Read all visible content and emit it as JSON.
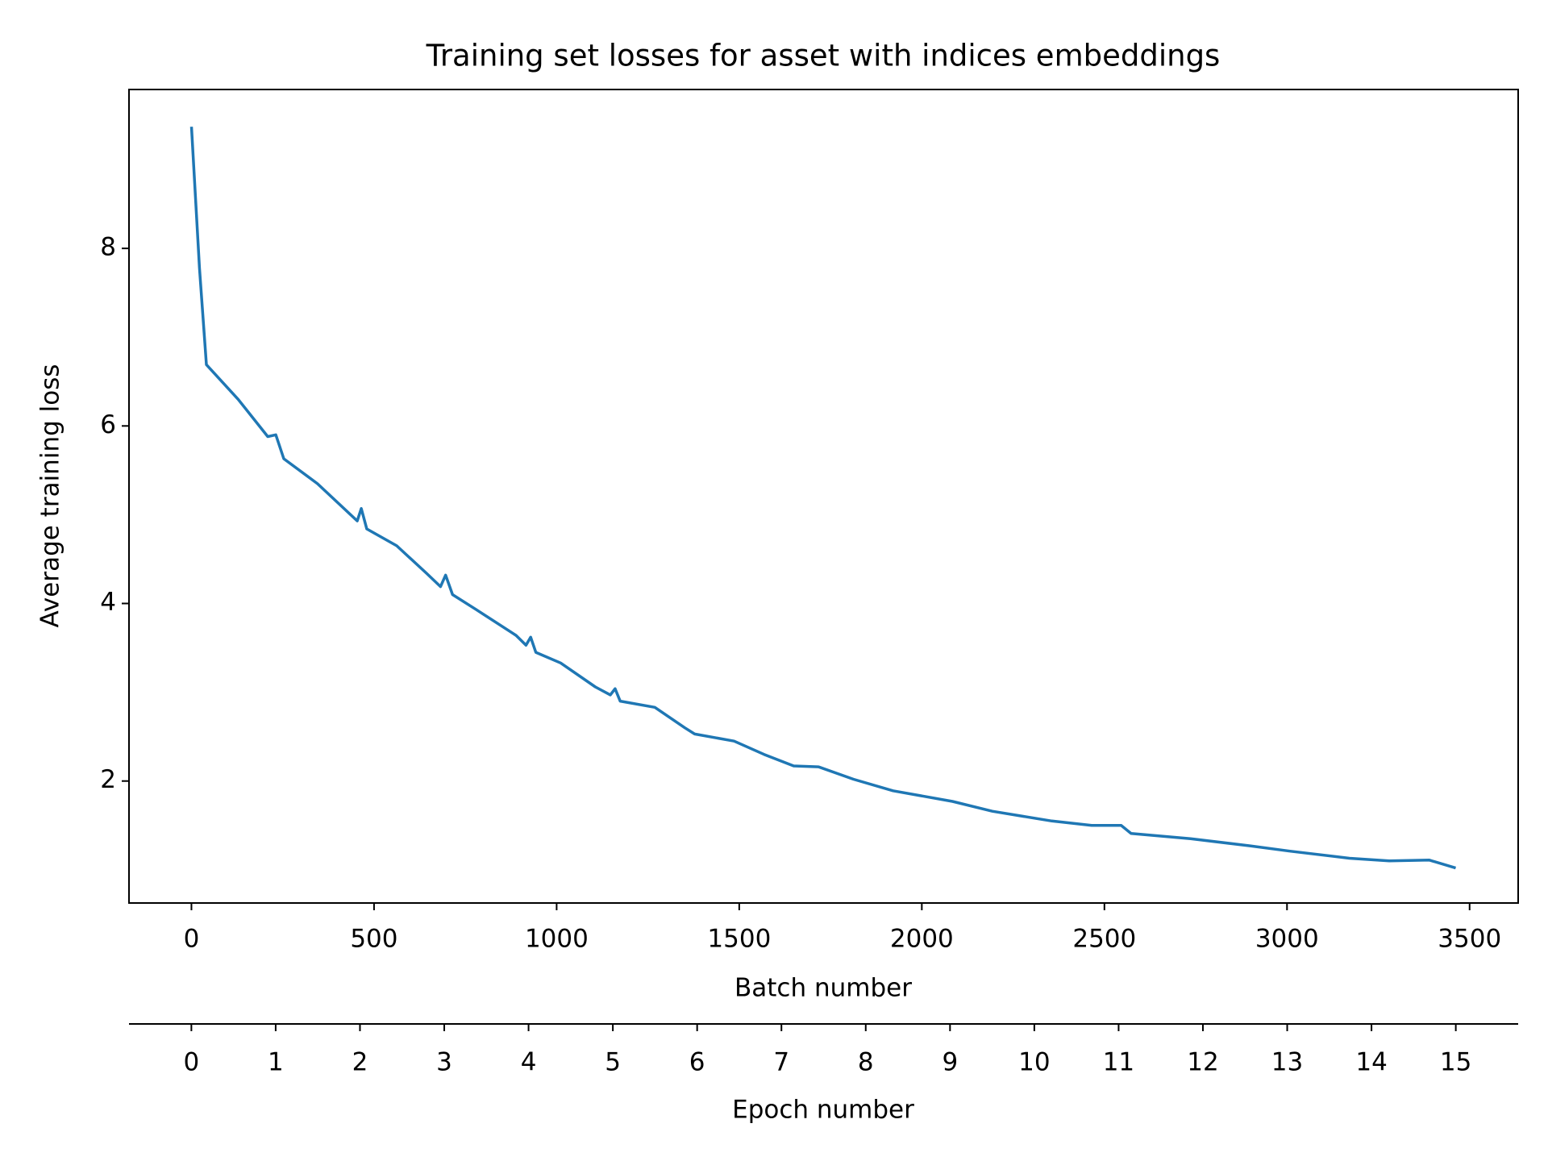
{
  "chart_data": {
    "type": "line",
    "title": "Training set losses for asset with indices embeddings",
    "xlabel": "Batch number",
    "ylabel": "Average training loss",
    "x": [
      0,
      22,
      41,
      128,
      209,
      231,
      253,
      345,
      454,
      465,
      480,
      562,
      644,
      682,
      696,
      715,
      780,
      889,
      916,
      929,
      943,
      1011,
      1106,
      1147,
      1160,
      1174,
      1269,
      1351,
      1378,
      1486,
      1568,
      1649,
      1717,
      1813,
      1921,
      2084,
      2193,
      2356,
      2465,
      2546,
      2573,
      2736,
      2899,
      3008,
      3171,
      3280,
      3389,
      3462
    ],
    "series": [
      {
        "name": "Average training loss",
        "color": "#1f77b4",
        "values": [
          9.37,
          7.78,
          6.69,
          6.3,
          5.88,
          5.9,
          5.63,
          5.35,
          4.93,
          5.07,
          4.84,
          4.65,
          4.34,
          4.19,
          4.32,
          4.1,
          3.93,
          3.64,
          3.53,
          3.62,
          3.45,
          3.33,
          3.06,
          2.97,
          3.04,
          2.9,
          2.83,
          2.6,
          2.53,
          2.45,
          2.3,
          2.17,
          2.16,
          2.02,
          1.89,
          1.77,
          1.66,
          1.55,
          1.5,
          1.5,
          1.41,
          1.35,
          1.27,
          1.21,
          1.13,
          1.1,
          1.11,
          1.02
        ]
      }
    ],
    "xlim": [
      -171,
      3633
    ],
    "xticks": [
      0,
      500,
      1000,
      1500,
      2000,
      2500,
      3000,
      3500
    ],
    "ylim": [
      0.626,
      9.79
    ],
    "yticks": [
      2,
      4,
      6,
      8
    ],
    "x2label": "Epoch number",
    "x2lim": [
      -0.74,
      15.74
    ],
    "x2ticks": [
      0,
      1,
      2,
      3,
      4,
      5,
      6,
      7,
      8,
      9,
      10,
      11,
      12,
      13,
      14,
      15
    ]
  }
}
